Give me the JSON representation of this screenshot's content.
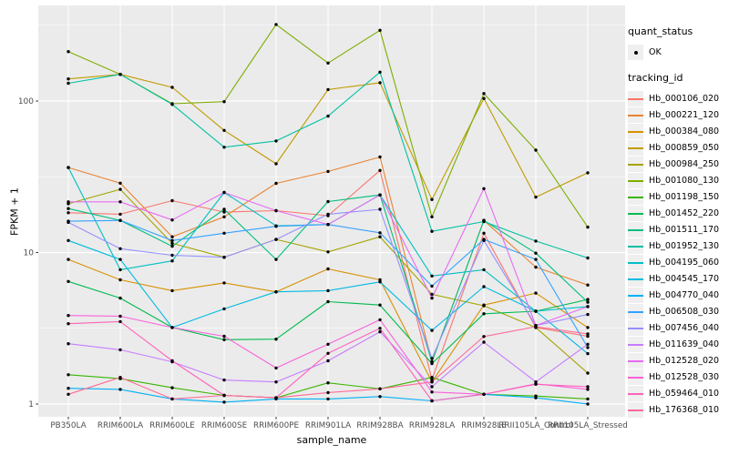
{
  "figure": {
    "panel_bg": "#EBEBEB",
    "grid_color": "#FFFFFF",
    "tick_color": "#333333",
    "tick_label_color": "#4D4D4D",
    "point_color": "#000000"
  },
  "chart_data": {
    "type": "line",
    "title": "",
    "xlabel": "sample_name",
    "ylabel": "FPKM + 1",
    "y_scale": "log10",
    "ylim": [
      1,
      400
    ],
    "y_ticks": [
      1,
      10,
      100
    ],
    "y_tick_labels": [
      "1",
      "10",
      "100"
    ],
    "y_minor_ticks": [
      3.162,
      31.623,
      316.228
    ],
    "grid": "on",
    "legend_position": "right",
    "categories": [
      "PB350LA",
      "RRIM600LA",
      "RRIM600LE",
      "RRIM600SE",
      "RRIM600PE",
      "RRIM901LA",
      "RRIM928BA",
      "RRIM928LA",
      "RRIM928LE",
      "RRII105LA_Control",
      "RRII105LA_Stressed"
    ],
    "legend": {
      "quant_status_title": "quant_status",
      "ok_label": "OK",
      "tracking_title": "tracking_id"
    },
    "series": [
      {
        "name": "Hb_000106_020",
        "color": "#F8766D",
        "values": [
          18.3,
          17.9,
          22,
          18.5,
          18.9,
          17.5,
          34.8,
          1.45,
          13.4,
          3.2,
          2.8
        ]
      },
      {
        "name": "Hb_000221_120",
        "color": "#EA8331",
        "values": [
          36.4,
          28.7,
          12.7,
          17.2,
          28.6,
          34.3,
          42.7,
          1.9,
          16.3,
          8,
          6.1
        ]
      },
      {
        "name": "Hb_000384_080",
        "color": "#D89000",
        "values": [
          9,
          6.6,
          5.6,
          6.3,
          5.5,
          7.8,
          6.6,
          1.4,
          4.5,
          5.4,
          3.2
        ]
      },
      {
        "name": "Hb_000859_050",
        "color": "#C09B00",
        "values": [
          140,
          150,
          123,
          64,
          38.5,
          119,
          132,
          22.4,
          104,
          23.2,
          33.6
        ]
      },
      {
        "name": "Hb_000984_250",
        "color": "#A3A500",
        "values": [
          21,
          26.1,
          11.5,
          9.3,
          12.2,
          10.1,
          12.7,
          5.3,
          4.45,
          3.2,
          1.6
        ]
      },
      {
        "name": "Hb_001080_130",
        "color": "#7CAE00",
        "values": [
          212,
          150,
          96,
          99,
          320,
          178,
          293,
          17.2,
          112,
          47.4,
          14.7
        ]
      },
      {
        "name": "Hb_001198_150",
        "color": "#39B600",
        "values": [
          1.56,
          1.47,
          1.28,
          1.14,
          1.1,
          1.38,
          1.26,
          1.5,
          1.16,
          1.13,
          1.08
        ]
      },
      {
        "name": "Hb_001452_220",
        "color": "#00BB4E",
        "values": [
          6.44,
          5,
          3.2,
          2.66,
          2.68,
          4.74,
          4.5,
          1.85,
          3.94,
          4.1,
          4.9
        ]
      },
      {
        "name": "Hb_001511_170",
        "color": "#00BF7D",
        "values": [
          19.5,
          16.3,
          11,
          19.3,
          9,
          21.7,
          24,
          1.9,
          16.3,
          9.9,
          4.7
        ]
      },
      {
        "name": "Hb_001952_130",
        "color": "#00C1A3",
        "values": [
          131,
          150,
          95,
          49.5,
          54.5,
          79.5,
          155,
          13.8,
          16,
          11.9,
          9.2
        ]
      },
      {
        "name": "Hb_004195_060",
        "color": "#00BFC4",
        "values": [
          36.4,
          7.7,
          8.8,
          24.9,
          15,
          15.3,
          24,
          7,
          7.7,
          4.1,
          4.4
        ]
      },
      {
        "name": "Hb_004545_170",
        "color": "#00BAE0",
        "values": [
          12,
          9,
          3.2,
          4.25,
          5.5,
          5.6,
          6.4,
          3.06,
          5.95,
          4.1,
          2.15
        ]
      },
      {
        "name": "Hb_004770_040",
        "color": "#00B0F6",
        "values": [
          1.27,
          1.25,
          1.08,
          1.03,
          1.08,
          1.08,
          1.12,
          1.05,
          1.16,
          1.1,
          1
        ]
      },
      {
        "name": "Hb_006508_030",
        "color": "#35A2FF",
        "values": [
          16.1,
          16.3,
          12,
          13.4,
          14.9,
          15.3,
          13.5,
          6,
          12.2,
          9,
          2.36
        ]
      },
      {
        "name": "Hb_007456_040",
        "color": "#9590FF",
        "values": [
          15.8,
          10.6,
          9.6,
          9.3,
          12.2,
          17.9,
          19.3,
          2,
          12,
          3.3,
          3.9
        ]
      },
      {
        "name": "Hb_011639_040",
        "color": "#C77CFF",
        "values": [
          2.5,
          2.28,
          1.9,
          1.44,
          1.4,
          1.93,
          3,
          1.3,
          2.56,
          1.4,
          2.48
        ]
      },
      {
        "name": "Hb_012528_020",
        "color": "#E76BF3",
        "values": [
          21.6,
          21.6,
          16.4,
          24.9,
          18.9,
          15.3,
          24,
          5,
          26.4,
          3.3,
          4.4
        ]
      },
      {
        "name": "Hb_012528_030",
        "color": "#FA62DB",
        "values": [
          3.84,
          3.8,
          3.2,
          2.8,
          1.73,
          2.48,
          3.6,
          1.2,
          1.16,
          1.36,
          1.25
        ]
      },
      {
        "name": "Hb_059464_010",
        "color": "#FF62BC",
        "values": [
          3.39,
          3.5,
          1.93,
          1.14,
          1.1,
          2.16,
          3.16,
          1.05,
          1.16,
          1.35,
          1.3
        ]
      },
      {
        "name": "Hb_176368_010",
        "color": "#FF6A98",
        "values": [
          1.16,
          1.5,
          1.08,
          1.14,
          1.1,
          1.19,
          1.26,
          1.4,
          2.79,
          3.24,
          2.9
        ]
      }
    ]
  }
}
